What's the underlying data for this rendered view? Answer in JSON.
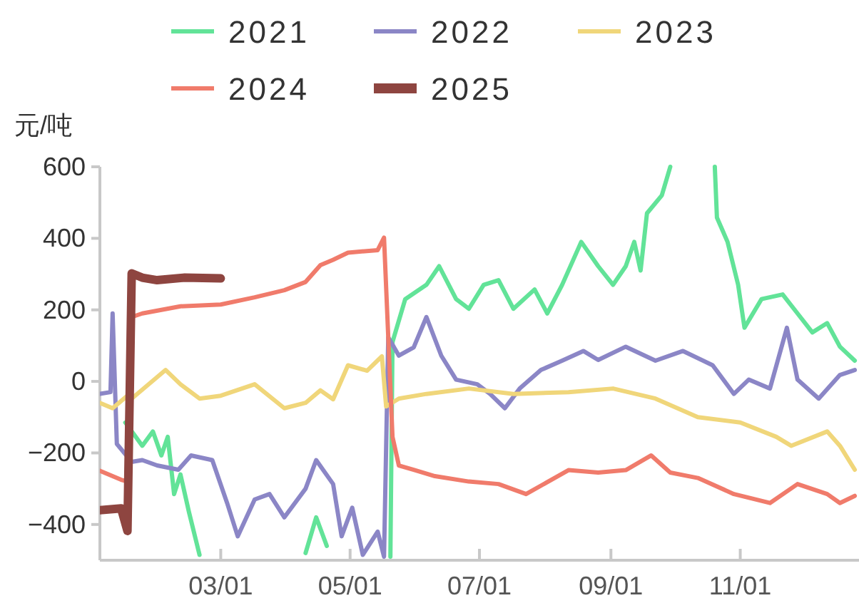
{
  "chart_data": {
    "type": "line",
    "ylabel": "元/吨",
    "legend": "top",
    "xlim": [
      "--01-03",
      "--12-27"
    ],
    "xticks": [
      {
        "value": "--03-01",
        "label": "03/01"
      },
      {
        "value": "--05-01",
        "label": "05/01"
      },
      {
        "value": "--07-01",
        "label": "07/01"
      },
      {
        "value": "--09-01",
        "label": "09/01"
      },
      {
        "value": "--11-01",
        "label": "11/01"
      }
    ],
    "ylim": [
      -500,
      600
    ],
    "yticks": [
      -400,
      -200,
      0,
      200,
      400,
      600
    ],
    "grid": false,
    "marker": "none",
    "line_style": "solid",
    "series": [
      {
        "name": "2021",
        "color": "#62e398",
        "x": [
          "--01-15",
          "--01-23",
          "--01-28",
          "--02-01",
          "--02-04",
          "--02-07",
          "--02-10",
          "--02-14",
          "--02-19",
          "--02-25",
          "--04-10",
          "--04-15",
          "--04-20",
          "--04-23",
          "--05-20",
          "--05-21",
          "--05-27",
          "--06-06",
          "--06-12",
          "--06-20",
          "--06-26",
          "--07-03",
          "--07-10",
          "--07-17",
          "--07-27",
          "--08-02",
          "--08-09",
          "--08-18",
          "--08-26",
          "--09-02",
          "--09-08",
          "--09-12",
          "--09-15",
          "--09-18",
          "--09-25",
          "--09-29",
          "--10-05",
          "--10-20",
          "--10-21",
          "--10-26",
          "--10-31",
          "--11-03",
          "--11-11",
          "--11-21",
          "--11-28",
          "--12-05",
          "--12-12",
          "--12-18",
          "--12-25"
        ],
        "values": [
          -115,
          -180,
          -140,
          -207,
          -155,
          -315,
          -260,
          -365,
          -485,
          null,
          -480,
          -380,
          -460,
          null,
          -490,
          110,
          230,
          270,
          322,
          230,
          203,
          270,
          283,
          203,
          257,
          190,
          270,
          390,
          322,
          270,
          322,
          390,
          310,
          470,
          520,
          600,
          null,
          600,
          458,
          390,
          270,
          150,
          230,
          243,
          190,
          137,
          163,
          97,
          58
        ]
      },
      {
        "name": "2022",
        "color": "#8b86c6",
        "x": [
          "--01-03",
          "--01-08",
          "--01-09",
          "--01-11",
          "--01-18",
          "--01-23",
          "--01-30",
          "--02-09",
          "--02-15",
          "--02-25",
          "--03-04",
          "--03-09",
          "--03-17",
          "--03-24",
          "--03-31",
          "--04-10",
          "--04-15",
          "--04-23",
          "--04-27",
          "--05-02",
          "--05-07",
          "--05-14",
          "--05-17",
          "--05-19",
          "--05-24",
          "--05-31",
          "--06-06",
          "--06-13",
          "--06-20",
          "--06-30",
          "--07-06",
          "--07-13",
          "--07-20",
          "--07-30",
          "--08-09",
          "--08-19",
          "--08-26",
          "--09-08",
          "--09-22",
          "--10-05",
          "--10-19",
          "--10-29",
          "--11-05",
          "--11-15",
          "--11-23",
          "--11-28",
          "--12-08",
          "--12-18",
          "--12-25"
        ],
        "values": [
          -35,
          -30,
          190,
          -175,
          -225,
          -220,
          -235,
          -247,
          -207,
          -220,
          -340,
          -433,
          -330,
          -315,
          -380,
          -300,
          -220,
          -287,
          -433,
          -353,
          -485,
          -420,
          -490,
          123,
          72,
          95,
          180,
          72,
          5,
          -8,
          -35,
          -75,
          -20,
          32,
          58,
          85,
          60,
          97,
          58,
          85,
          45,
          -35,
          5,
          -20,
          150,
          5,
          -48,
          18,
          32
        ]
      },
      {
        "name": "2023",
        "color": "#f0d67a",
        "x": [
          "--01-03",
          "--01-09",
          "--01-16",
          "--01-18",
          "--02-03",
          "--02-10",
          "--02-19",
          "--03-01",
          "--03-17",
          "--03-31",
          "--04-10",
          "--04-17",
          "--04-23",
          "--04-30",
          "--05-09",
          "--05-16",
          "--05-18",
          "--05-24",
          "--06-06",
          "--06-26",
          "--07-17",
          "--08-12",
          "--09-02",
          "--09-22",
          "--10-12",
          "--11-01",
          "--11-18",
          "--11-25",
          "--12-12",
          "--12-18",
          "--12-25"
        ],
        "values": [
          -60,
          -75,
          -40,
          -48,
          32,
          -8,
          -48,
          -40,
          -8,
          -75,
          -60,
          -25,
          -50,
          45,
          30,
          70,
          -70,
          -48,
          -35,
          -20,
          -35,
          -30,
          -20,
          -48,
          -100,
          -115,
          -155,
          -180,
          -140,
          -180,
          -247
        ]
      },
      {
        "name": "2024",
        "color": "#f07b6b",
        "x": [
          "--01-03",
          "--01-13",
          "--01-16",
          "--01-18",
          "--01-23",
          "--02-10",
          "--03-01",
          "--03-17",
          "--03-31",
          "--04-10",
          "--04-17",
          "--04-23",
          "--04-30",
          "--05-14",
          "--05-17",
          "--05-21",
          "--05-24",
          "--05-31",
          "--06-10",
          "--06-26",
          "--07-10",
          "--07-23",
          "--08-12",
          "--08-26",
          "--09-08",
          "--09-20",
          "--09-29",
          "--10-12",
          "--10-29",
          "--11-15",
          "--11-28",
          "--12-12",
          "--12-18",
          "--12-25"
        ],
        "values": [
          -250,
          -275,
          -280,
          180,
          190,
          210,
          215,
          235,
          255,
          278,
          325,
          340,
          360,
          367,
          402,
          -155,
          -235,
          -247,
          -265,
          -280,
          -287,
          -315,
          -248,
          -255,
          -248,
          -207,
          -255,
          -270,
          -315,
          -340,
          -287,
          -315,
          -340,
          -320
        ]
      },
      {
        "name": "2025",
        "color": "#8e4540",
        "x": [
          "--01-03",
          "--01-13",
          "--01-16",
          "--01-18",
          "--01-23",
          "--01-30",
          "--02-12",
          "--03-01"
        ],
        "values": [
          -360,
          -355,
          -418,
          302,
          290,
          283,
          290,
          288
        ]
      }
    ]
  }
}
